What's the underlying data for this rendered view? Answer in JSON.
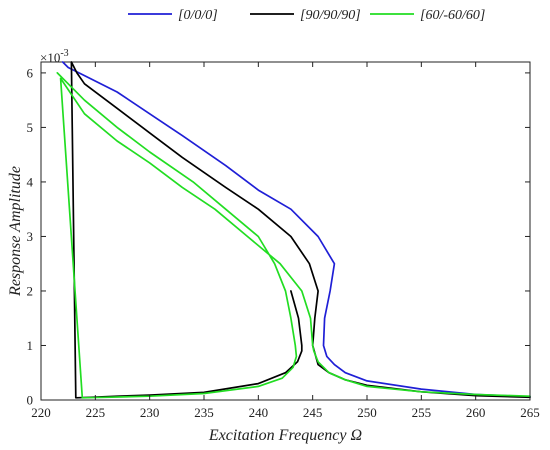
{
  "chart_data": {
    "type": "line",
    "title": "",
    "xlabel": "Excitation Frequency Ω",
    "ylabel": "Response Amplitude",
    "y_multiplier_label": "×10",
    "y_multiplier_exponent": "-3",
    "xlim": [
      220,
      265
    ],
    "ylim": [
      0,
      6.2
    ],
    "x_ticks": [
      220,
      225,
      230,
      235,
      240,
      245,
      250,
      255,
      260,
      265
    ],
    "y_ticks": [
      0,
      1,
      2,
      3,
      4,
      5,
      6
    ],
    "legend_position": "top",
    "grid": false,
    "series": [
      {
        "name": "[0/0/0]",
        "color": "#1f1fd6",
        "x": [
          265,
          260,
          255,
          250,
          248,
          247,
          246.3,
          246.0,
          246.1,
          246.6,
          247.0,
          245.5,
          243,
          240,
          237,
          233,
          230,
          227,
          224,
          222.5,
          222
        ],
        "y": [
          0.06,
          0.1,
          0.2,
          0.35,
          0.5,
          0.65,
          0.8,
          1.0,
          1.5,
          2.0,
          2.5,
          3.0,
          3.5,
          3.85,
          4.3,
          4.85,
          5.25,
          5.65,
          5.95,
          6.1,
          6.2
        ]
      },
      {
        "name": "[90/90/90]",
        "color": "#000000",
        "x": [
          265,
          260,
          255,
          250,
          248,
          246.5,
          245.5,
          245.0,
          245.2,
          245.5,
          244.7,
          243,
          240,
          237,
          233,
          230,
          227,
          224,
          223.3,
          222.8,
          223.2,
          224.5,
          227,
          230,
          235,
          240,
          242.5,
          243.6,
          244.0,
          244.0,
          243.7,
          243.0
        ],
        "y": [
          0.05,
          0.08,
          0.15,
          0.27,
          0.37,
          0.5,
          0.65,
          1.0,
          1.5,
          2.0,
          2.5,
          3.0,
          3.5,
          3.9,
          4.45,
          4.9,
          5.35,
          5.8,
          6.0,
          6.2,
          0.04,
          0.05,
          0.07,
          0.09,
          0.14,
          0.3,
          0.5,
          0.7,
          0.9,
          1.0,
          1.5,
          2.0
        ]
      },
      {
        "name": "[60/-60/60]",
        "color": "#22dd22",
        "x": [
          265,
          260,
          255,
          250,
          248,
          246.5,
          245.5,
          245.1,
          245.0,
          244.8,
          244.0,
          242,
          239,
          236,
          233,
          230,
          227,
          224,
          221.8,
          223.8,
          226,
          230,
          235,
          240,
          242.2,
          243.2,
          243.5,
          243.4,
          243.0,
          242.5,
          241.5,
          240,
          237,
          234,
          230,
          227,
          224,
          221.5
        ],
        "y": [
          0.07,
          0.1,
          0.15,
          0.25,
          0.37,
          0.5,
          0.7,
          0.9,
          1.0,
          1.5,
          2.0,
          2.5,
          3.0,
          3.5,
          3.9,
          4.35,
          4.75,
          5.25,
          5.9,
          0.04,
          0.05,
          0.07,
          0.12,
          0.25,
          0.4,
          0.6,
          0.8,
          1.0,
          1.5,
          2.0,
          2.5,
          3.0,
          3.5,
          4.0,
          4.55,
          5.0,
          5.5,
          6.0
        ]
      }
    ]
  }
}
